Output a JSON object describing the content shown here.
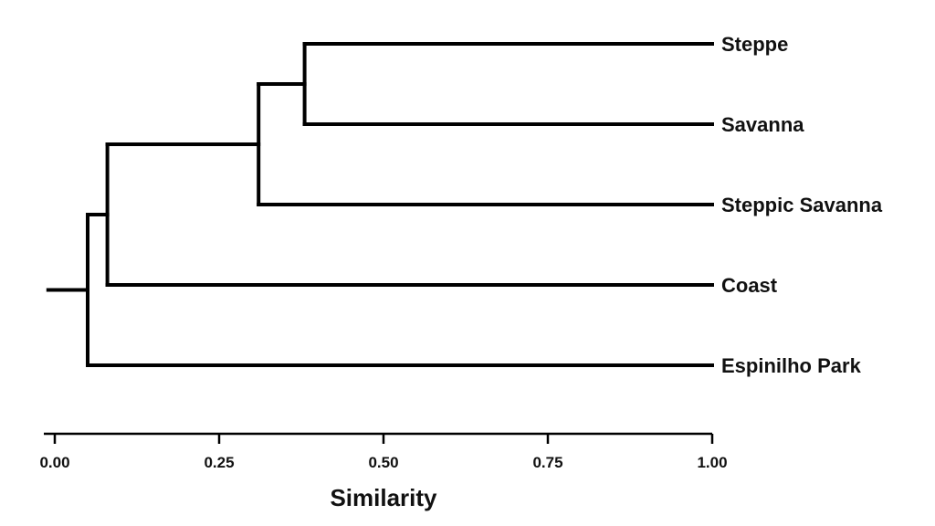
{
  "dendrogram": {
    "axis": {
      "title": "Similarity",
      "range": [
        0,
        1
      ],
      "ticks": [
        {
          "value": 0,
          "label": "0.00"
        },
        {
          "value": 0.25,
          "label": "0.25"
        },
        {
          "value": 0.5,
          "label": "0.50"
        },
        {
          "value": 0.75,
          "label": "0.75"
        },
        {
          "value": 1,
          "label": "1.00"
        }
      ]
    },
    "leaves": [
      "Steppe",
      "Savanna",
      "Steppic Savanna",
      "Coast",
      "Espinilho Park"
    ],
    "merges": [
      {
        "children": [
          "Steppe",
          "Savanna"
        ],
        "similarity": 0.38
      },
      {
        "children": [
          "Steppe+Savanna",
          "Steppic Savanna"
        ],
        "similarity": 0.31
      },
      {
        "children": [
          "Steppe+Savanna+Steppic Savanna",
          "Coast"
        ],
        "similarity": 0.08
      },
      {
        "children": [
          "Steppe+Savanna+Steppic Savanna+Coast",
          "Espinilho Park"
        ],
        "similarity": 0.05
      }
    ],
    "root_similarity": -0.01,
    "line_color": "#000000"
  }
}
